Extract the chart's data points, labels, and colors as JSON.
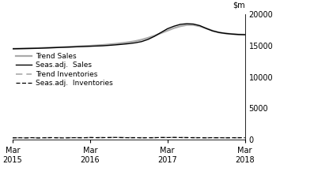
{
  "ylim": [
    0,
    20000
  ],
  "yticks": [
    0,
    5000,
    10000,
    15000,
    20000
  ],
  "xlim": [
    0,
    36
  ],
  "xtick_positions": [
    0,
    12,
    24,
    36
  ],
  "xtick_labels": [
    "Mar\n2015",
    "Mar\n2016",
    "Mar\n2017",
    "Mar\n2018"
  ],
  "seas_adj_sales": [
    14500,
    14520,
    14540,
    14560,
    14580,
    14620,
    14660,
    14700,
    14740,
    14780,
    14820,
    14860,
    14900,
    14940,
    14980,
    15050,
    15130,
    15220,
    15320,
    15450,
    15650,
    16000,
    16500,
    17100,
    17700,
    18100,
    18400,
    18500,
    18450,
    18200,
    17750,
    17350,
    17100,
    16950,
    16850,
    16780,
    16750
  ],
  "trend_sales": [
    14500,
    14530,
    14560,
    14590,
    14620,
    14660,
    14700,
    14740,
    14780,
    14830,
    14880,
    14930,
    14980,
    15040,
    15110,
    15200,
    15300,
    15420,
    15550,
    15720,
    15950,
    16250,
    16600,
    17000,
    17400,
    17800,
    18100,
    18300,
    18300,
    18100,
    17750,
    17380,
    17100,
    16950,
    16850,
    16780,
    16750
  ],
  "seas_adj_inv": [
    280,
    300,
    270,
    310,
    260,
    300,
    320,
    290,
    270,
    300,
    310,
    290,
    340,
    310,
    320,
    330,
    350,
    320,
    300,
    310,
    290,
    300,
    310,
    340,
    330,
    350,
    330,
    320,
    310,
    300,
    290,
    310,
    300,
    290,
    300,
    310,
    300
  ],
  "trend_inv": [
    295,
    295,
    295,
    295,
    300,
    300,
    300,
    305,
    310,
    310,
    310,
    310,
    315,
    320,
    325,
    330,
    335,
    330,
    320,
    315,
    305,
    305,
    310,
    320,
    330,
    335,
    330,
    325,
    315,
    305,
    300,
    300,
    300,
    300,
    300,
    300,
    300
  ],
  "legend_entries": [
    "Seas.adj.  Sales",
    "Trend Sales",
    "Seas.adj.  Inventories",
    "Trend Inventories"
  ],
  "seas_adj_sales_color": "#000000",
  "trend_sales_color": "#aaaaaa",
  "seas_adj_inv_color": "#000000",
  "trend_inv_color": "#aaaaaa",
  "background_color": "#ffffff"
}
